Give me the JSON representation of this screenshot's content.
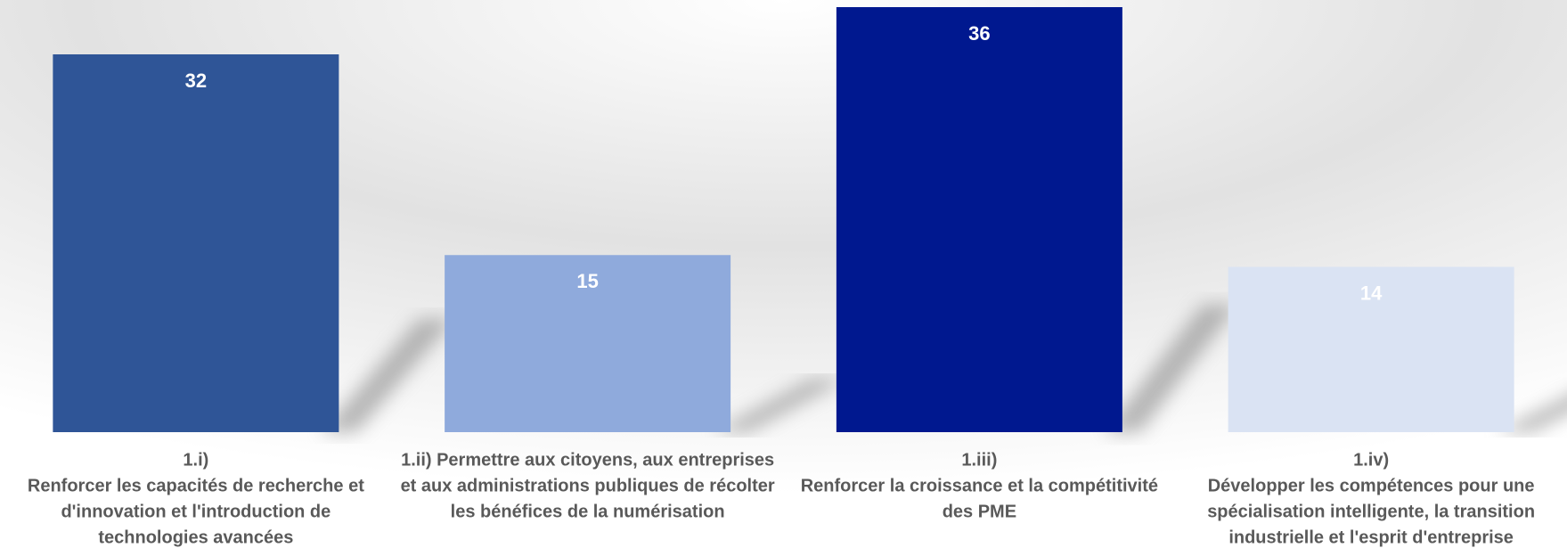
{
  "chart_data": {
    "type": "bar",
    "categories": [
      [
        "1.i)",
        "Renforcer les capacités de recherche et",
        "d'innovation et l'introduction de",
        "technologies avancées"
      ],
      [
        "1.ii) Permettre aux citoyens, aux entreprises",
        "et aux administrations publiques de récolter",
        "les bénéfices de la numérisation"
      ],
      [
        "1.iii)",
        "Renforcer la croissance et la compétitivité",
        "des PME"
      ],
      [
        "1.iv)",
        "Développer les compétences pour une",
        "spécialisation intelligente, la transition",
        "industrielle et l'esprit d'entreprise"
      ]
    ],
    "values": [
      32,
      15,
      36,
      14
    ],
    "colors": [
      "#2f5597",
      "#8faadc",
      "#00188f",
      "#dae3f3"
    ],
    "ylim": [
      0,
      36
    ]
  }
}
